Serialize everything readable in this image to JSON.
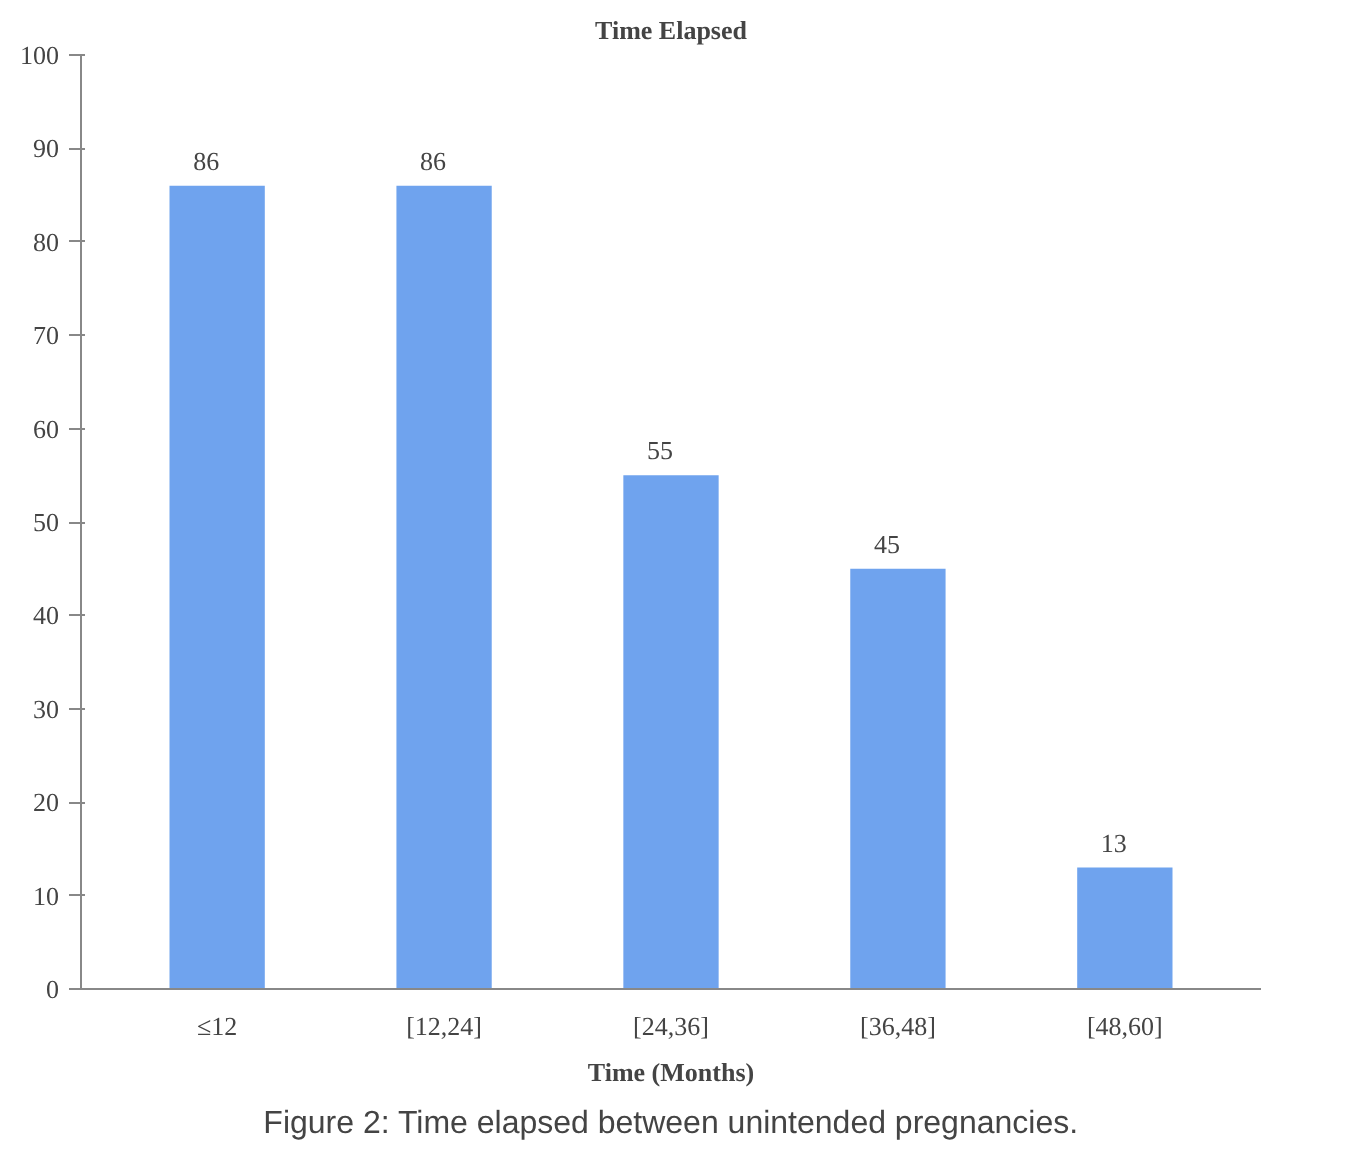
{
  "chart_data": {
    "type": "bar",
    "title": "Time Elapsed",
    "xlabel": "Time (Months)",
    "categories": [
      "≤12",
      "[12,24]",
      "[24,36]",
      "[36,48]",
      "[48,60]"
    ],
    "values": [
      86,
      86,
      55,
      45,
      13
    ],
    "color": "#6fa3ee",
    "ylim": [
      0,
      100
    ],
    "yticks": [
      0,
      10,
      20,
      30,
      40,
      50,
      60,
      70,
      80,
      90,
      100
    ],
    "data_labels": true,
    "grid": false,
    "annotations": [
      "Figure 2: Time elapsed between unintended pregnancies."
    ]
  }
}
